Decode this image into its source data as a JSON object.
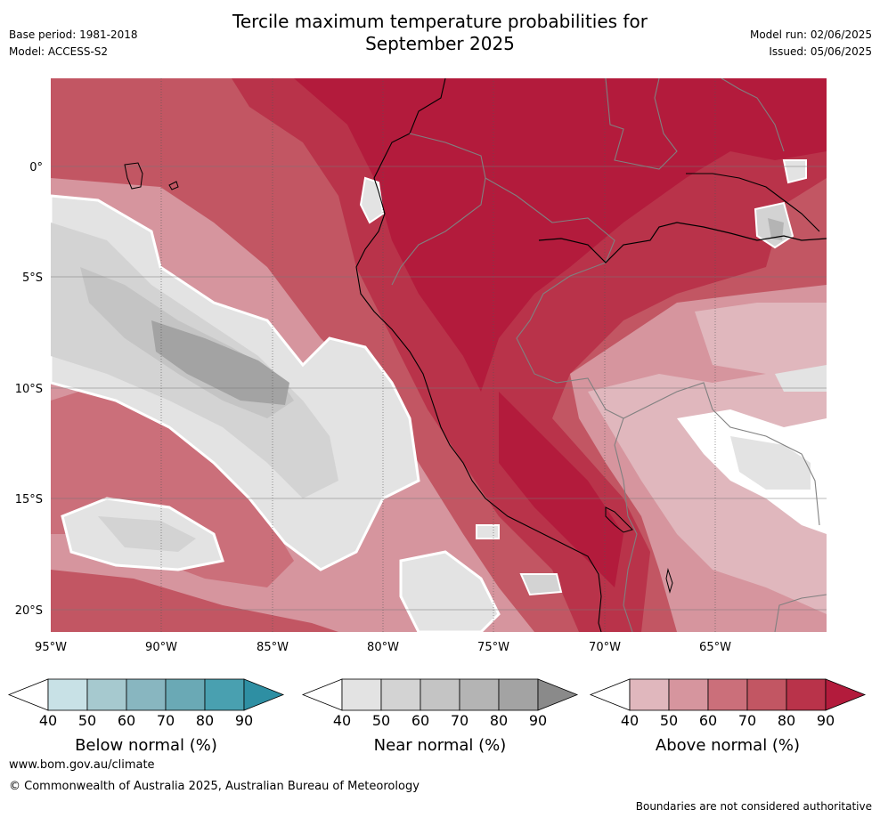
{
  "header": {
    "title_line1": "Tercile maximum temperature probabilities for",
    "title_line2": "September 2025",
    "base_period": "Base period: 1981-2018",
    "model": "Model: ACCESS-S2",
    "model_run": "Model run: 02/06/2025",
    "issued": "Issued: 05/06/2025"
  },
  "map": {
    "longitude_ticks": [
      "95°W",
      "90°W",
      "85°W",
      "80°W",
      "75°W",
      "70°W",
      "65°W"
    ],
    "latitude_ticks": [
      "0°",
      "5°S",
      "10°S",
      "15°S",
      "20°S"
    ],
    "lon_range": [
      -95,
      -60
    ],
    "lat_range": [
      -21,
      4
    ],
    "gridlines": true
  },
  "legends": [
    {
      "title": "Below normal (%)",
      "ticks": [
        "40",
        "50",
        "60",
        "70",
        "80",
        "90"
      ],
      "colors": [
        "#ffffff",
        "#c8e1e6",
        "#a6c9cf",
        "#88b6c0",
        "#6aa9b5",
        "#49a0b0",
        "#2e8fa3"
      ]
    },
    {
      "title": "Near normal (%)",
      "ticks": [
        "40",
        "50",
        "60",
        "70",
        "80",
        "90"
      ],
      "colors": [
        "#ffffff",
        "#e3e3e3",
        "#d3d3d3",
        "#c4c4c4",
        "#b4b4b4",
        "#a3a3a3",
        "#8a8a8a"
      ]
    },
    {
      "title": "Above normal (%)",
      "ticks": [
        "40",
        "50",
        "60",
        "70",
        "80",
        "90"
      ],
      "colors": [
        "#ffffff",
        "#e0b7bd",
        "#d6959e",
        "#cb6f7a",
        "#c25663",
        "#b9334a",
        "#b31b3c"
      ]
    }
  ],
  "footer": {
    "website": "www.bom.gov.au/climate",
    "copyright": "© Commonwealth of Australia 2025, Australian Bureau of Meteorology",
    "disclaimer": "Boundaries are not considered authoritative"
  }
}
